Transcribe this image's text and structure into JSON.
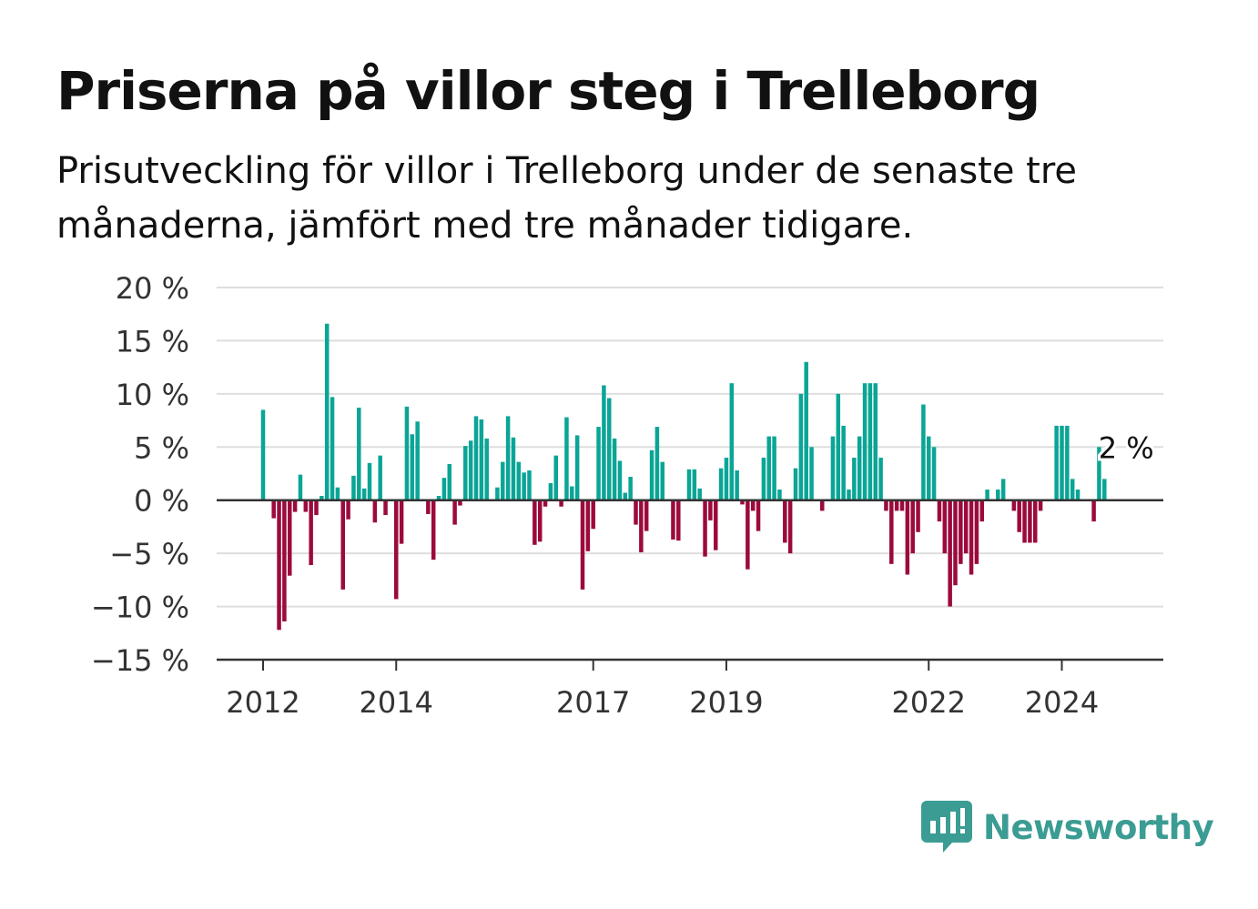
{
  "title": "Priserna på villor steg i Trelleborg",
  "subtitle": "Prisutveckling för villor i Trelleborg under de senaste tre månaderna, jämfört med tre månader tidigare.",
  "brand": "Newsworthy",
  "colors": {
    "positive": "#0aa596",
    "negative": "#9c0a3d",
    "grid": "#dedede",
    "axis": "#333333",
    "brand": "#3b9c93"
  },
  "chart_data": {
    "type": "bar",
    "y_unit": "%",
    "ylim": [
      -15,
      20
    ],
    "y_ticks": [
      20,
      15,
      10,
      5,
      0,
      -5,
      -10,
      -15
    ],
    "y_tick_labels": [
      "20 %",
      "15 %",
      "10 %",
      "5 %",
      "0 %",
      "−5 %",
      "−10 %",
      "−15 %"
    ],
    "x_tick_labels": [
      {
        "label": "2012",
        "index": 0
      },
      {
        "label": "2014",
        "index": 25
      },
      {
        "label": "2017",
        "index": 62
      },
      {
        "label": "2019",
        "index": 87
      },
      {
        "label": "2022",
        "index": 125
      },
      {
        "label": "2024",
        "index": 150
      }
    ],
    "annotation": {
      "text": "2 %",
      "index": 162
    },
    "grid": true,
    "legend": "none",
    "values": [
      8.5,
      0,
      -1.7,
      -12.2,
      -11.4,
      -7.1,
      -1.1,
      2.4,
      -1.1,
      -6.1,
      -1.4,
      0.4,
      16.6,
      9.7,
      1.2,
      -8.4,
      -1.8,
      2.3,
      8.7,
      1.1,
      3.5,
      -2.1,
      4.2,
      -1.4,
      0,
      -9.3,
      -4.1,
      8.8,
      6.2,
      7.4,
      0,
      -1.3,
      -5.6,
      0.4,
      2.1,
      3.4,
      -2.3,
      -0.5,
      5.1,
      5.6,
      7.9,
      7.6,
      5.8,
      0,
      1.2,
      3.6,
      7.9,
      5.9,
      3.6,
      2.6,
      2.8,
      -4.2,
      -3.9,
      -0.6,
      1.6,
      4.2,
      -0.6,
      7.8,
      1.3,
      6.1,
      -8.4,
      -4.8,
      -2.7,
      6.9,
      10.8,
      9.6,
      5.8,
      3.7,
      0.7,
      2.2,
      -2.3,
      -4.9,
      -2.9,
      4.7,
      6.9,
      3.6,
      0,
      -3.7,
      -3.8,
      0,
      2.9,
      2.9,
      1.1,
      -5.3,
      -1.9,
      -4.7,
      3,
      4,
      11,
      2.8,
      -0.4,
      -6.5,
      -1,
      -2.9,
      4,
      6,
      6,
      1,
      -4,
      -5,
      3,
      10,
      13,
      5,
      0,
      -1,
      0,
      6,
      10,
      7,
      1,
      4,
      6,
      11,
      11,
      11,
      4,
      -1,
      -6,
      -1,
      -1,
      -7,
      -5,
      -3,
      9,
      6,
      5,
      -2,
      -5,
      -10,
      -8,
      -6,
      -5,
      -7,
      -6,
      -2,
      1,
      0,
      1,
      2,
      0,
      -1,
      -3,
      -4,
      -4,
      -4,
      -1,
      0,
      0,
      7,
      7,
      7,
      2,
      1,
      0,
      0,
      -2,
      5,
      2
    ]
  }
}
